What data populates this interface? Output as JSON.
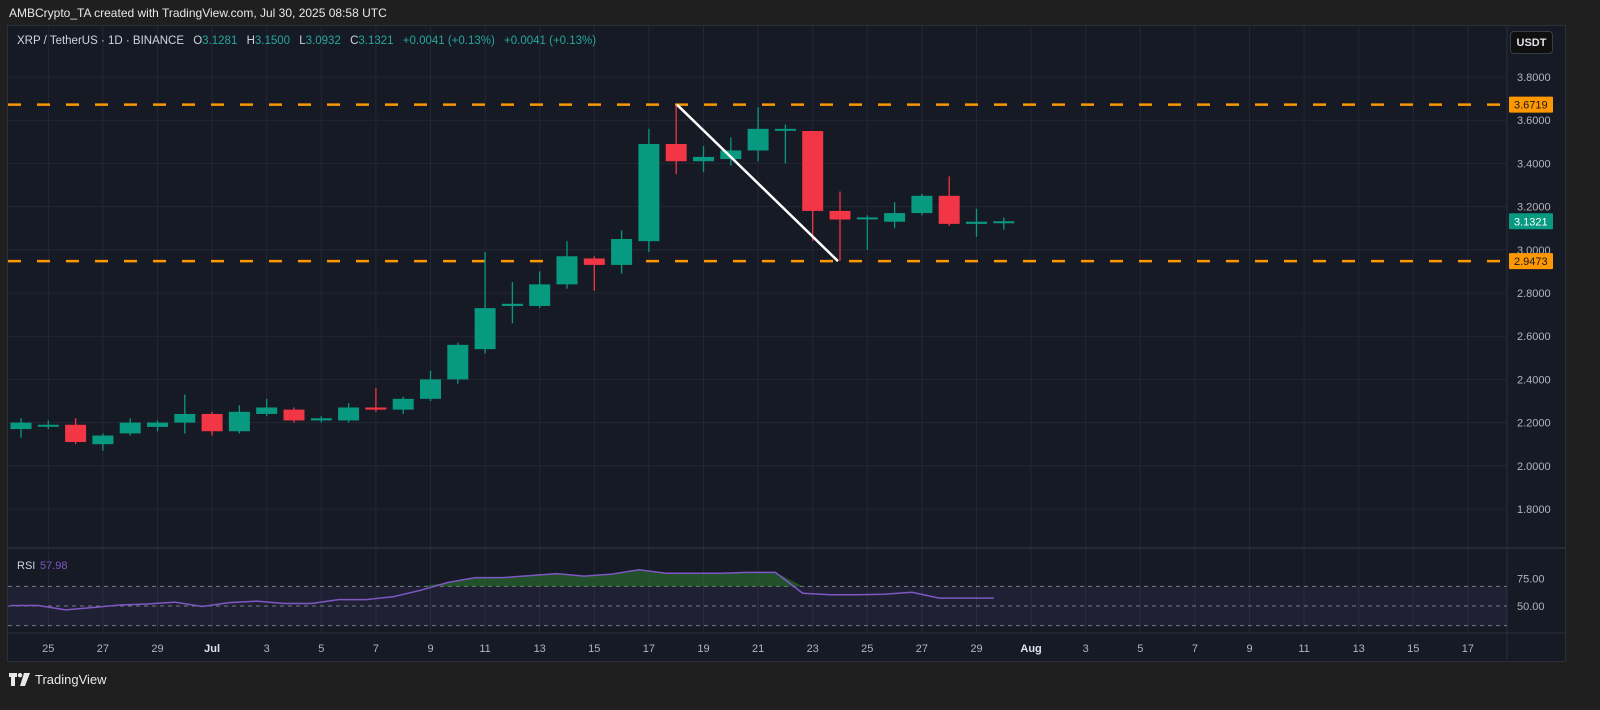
{
  "header": {
    "caption": "AMBCrypto_TA created with TradingView.com, Jul 30, 2025 08:58 UTC"
  },
  "legend": {
    "symbol": "XRP / TetherUS · 1D · BINANCE",
    "o_label": "O",
    "o_value": "3.1281",
    "h_label": "H",
    "h_value": "3.1500",
    "l_label": "L",
    "l_value": "3.0932",
    "c_label": "C",
    "c_value": "3.1321",
    "change1": "+0.0041 (+0.13%)",
    "change2": "+0.0041 (+0.13%)"
  },
  "price_scale": {
    "unit_button": "USDT",
    "ticks": [
      "3.8000",
      "3.6000",
      "3.4000",
      "3.2000",
      "3.0000",
      "2.8000",
      "2.6000",
      "2.4000",
      "2.2000",
      "2.0000",
      "1.8000"
    ],
    "labels": [
      {
        "text": "3.6719",
        "kind": "level"
      },
      {
        "text": "3.1321",
        "kind": "last"
      },
      {
        "text": "2.9473",
        "kind": "level"
      }
    ]
  },
  "rsi": {
    "label": "RSI",
    "value": "57.98",
    "ticks": [
      "75.00",
      "50.00"
    ]
  },
  "time_axis": {
    "labels": [
      "25",
      "27",
      "29",
      "Jul",
      "3",
      "5",
      "7",
      "9",
      "11",
      "13",
      "15",
      "17",
      "19",
      "21",
      "23",
      "25",
      "27",
      "29",
      "Aug",
      "3",
      "5",
      "7",
      "9",
      "11",
      "13",
      "15",
      "17"
    ]
  },
  "footer": {
    "brand": "TradingView"
  },
  "colors": {
    "up": "#089981",
    "down": "#f23645",
    "level_line": "#ff9800",
    "rsi_line": "#7e57c2",
    "last_price_bg": "#089981"
  },
  "chart_data": {
    "type": "candlestick",
    "title": "XRP / TetherUS · 1D · BINANCE",
    "xlabel": "",
    "ylabel": "USDT",
    "ylim": [
      1.68,
      3.87
    ],
    "grid": true,
    "horizontal_levels": [
      3.6719,
      2.9473
    ],
    "trendline": {
      "from": {
        "date": "Jul 18",
        "price": 3.67
      },
      "to": {
        "date": "Jul 24",
        "price": 2.95
      }
    },
    "last_price": 3.1321,
    "candles": [
      {
        "date": "Jun 24",
        "o": 2.17,
        "h": 2.22,
        "l": 2.13,
        "c": 2.2
      },
      {
        "date": "Jun 25",
        "o": 2.19,
        "h": 2.21,
        "l": 2.17,
        "c": 2.19
      },
      {
        "date": "Jun 26",
        "o": 2.19,
        "h": 2.22,
        "l": 2.1,
        "c": 2.11
      },
      {
        "date": "Jun 27",
        "o": 2.1,
        "h": 2.15,
        "l": 2.07,
        "c": 2.14
      },
      {
        "date": "Jun 28",
        "o": 2.15,
        "h": 2.22,
        "l": 2.14,
        "c": 2.2
      },
      {
        "date": "Jun 29",
        "o": 2.18,
        "h": 2.21,
        "l": 2.16,
        "c": 2.2
      },
      {
        "date": "Jun 30",
        "o": 2.2,
        "h": 2.33,
        "l": 2.15,
        "c": 2.24
      },
      {
        "date": "Jul 1",
        "o": 2.24,
        "h": 2.25,
        "l": 2.14,
        "c": 2.16
      },
      {
        "date": "Jul 2",
        "o": 2.16,
        "h": 2.28,
        "l": 2.15,
        "c": 2.25
      },
      {
        "date": "Jul 3",
        "o": 2.24,
        "h": 2.31,
        "l": 2.23,
        "c": 2.27
      },
      {
        "date": "Jul 4",
        "o": 2.26,
        "h": 2.27,
        "l": 2.2,
        "c": 2.21
      },
      {
        "date": "Jul 5",
        "o": 2.21,
        "h": 2.23,
        "l": 2.2,
        "c": 2.22
      },
      {
        "date": "Jul 6",
        "o": 2.21,
        "h": 2.29,
        "l": 2.2,
        "c": 2.27
      },
      {
        "date": "Jul 7",
        "o": 2.27,
        "h": 2.36,
        "l": 2.25,
        "c": 2.26
      },
      {
        "date": "Jul 8",
        "o": 2.26,
        "h": 2.32,
        "l": 2.24,
        "c": 2.31
      },
      {
        "date": "Jul 9",
        "o": 2.31,
        "h": 2.44,
        "l": 2.3,
        "c": 2.4
      },
      {
        "date": "Jul 10",
        "o": 2.4,
        "h": 2.57,
        "l": 2.38,
        "c": 2.56
      },
      {
        "date": "Jul 11",
        "o": 2.54,
        "h": 2.99,
        "l": 2.52,
        "c": 2.73
      },
      {
        "date": "Jul 12",
        "o": 2.74,
        "h": 2.85,
        "l": 2.66,
        "c": 2.75
      },
      {
        "date": "Jul 13",
        "o": 2.74,
        "h": 2.9,
        "l": 2.73,
        "c": 2.84
      },
      {
        "date": "Jul 14",
        "o": 2.84,
        "h": 3.04,
        "l": 2.82,
        "c": 2.97
      },
      {
        "date": "Jul 15",
        "o": 2.96,
        "h": 2.97,
        "l": 2.81,
        "c": 2.93
      },
      {
        "date": "Jul 16",
        "o": 2.93,
        "h": 3.09,
        "l": 2.89,
        "c": 3.05
      },
      {
        "date": "Jul 17",
        "o": 3.04,
        "h": 3.56,
        "l": 2.99,
        "c": 3.49
      },
      {
        "date": "Jul 18",
        "o": 3.49,
        "h": 3.67,
        "l": 3.35,
        "c": 3.41
      },
      {
        "date": "Jul 19",
        "o": 3.41,
        "h": 3.48,
        "l": 3.36,
        "c": 3.43
      },
      {
        "date": "Jul 20",
        "o": 3.42,
        "h": 3.52,
        "l": 3.39,
        "c": 3.46
      },
      {
        "date": "Jul 21",
        "o": 3.46,
        "h": 3.66,
        "l": 3.41,
        "c": 3.56
      },
      {
        "date": "Jul 22",
        "o": 3.56,
        "h": 3.58,
        "l": 3.4,
        "c": 3.56
      },
      {
        "date": "Jul 23",
        "o": 3.55,
        "h": 3.55,
        "l": 3.04,
        "c": 3.18
      },
      {
        "date": "Jul 24",
        "o": 3.18,
        "h": 3.27,
        "l": 2.95,
        "c": 3.14
      },
      {
        "date": "Jul 25",
        "o": 3.15,
        "h": 3.16,
        "l": 3.0,
        "c": 3.15
      },
      {
        "date": "Jul 26",
        "o": 3.13,
        "h": 3.22,
        "l": 3.1,
        "c": 3.17
      },
      {
        "date": "Jul 27",
        "o": 3.17,
        "h": 3.26,
        "l": 3.16,
        "c": 3.25
      },
      {
        "date": "Jul 28",
        "o": 3.25,
        "h": 3.34,
        "l": 3.11,
        "c": 3.12
      },
      {
        "date": "Jul 29",
        "o": 3.12,
        "h": 3.19,
        "l": 3.06,
        "c": 3.13
      },
      {
        "date": "Jul 30",
        "o": 3.1281,
        "h": 3.15,
        "l": 3.0932,
        "c": 3.1321
      }
    ],
    "rsi_series": {
      "name": "RSI",
      "ylim": [
        30,
        80
      ],
      "bands": [
        70,
        50,
        30
      ],
      "values": [
        50.5,
        50.5,
        46,
        48.5,
        51,
        52,
        54,
        49.5,
        53.5,
        55,
        52.5,
        52.5,
        56.5,
        56.5,
        59.5,
        66,
        74,
        79,
        79,
        81,
        83,
        80.5,
        82.5,
        87,
        83.5,
        83.5,
        83.5,
        84.3,
        84.3,
        63,
        61.5,
        61.5,
        62,
        64,
        58,
        58,
        57.98
      ]
    }
  }
}
